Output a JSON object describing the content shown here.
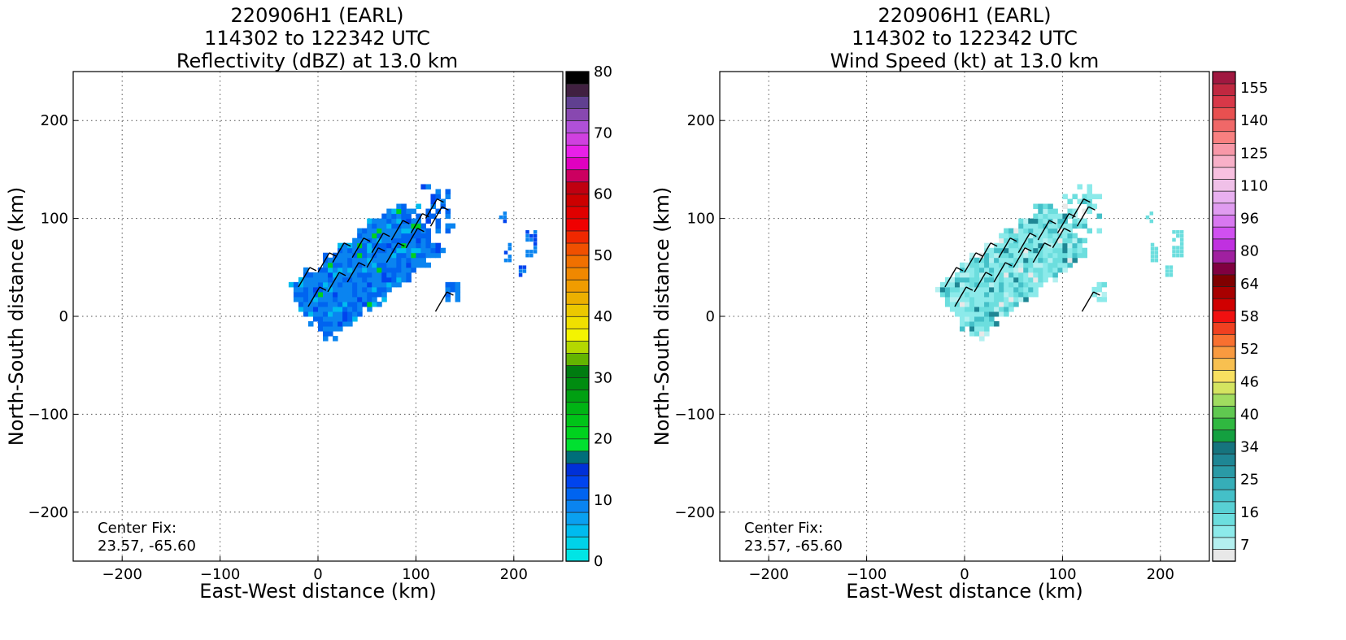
{
  "chart_data": [
    {
      "type": "heatmap",
      "title": [
        "220906H1 (EARL)",
        "114302 to 122342 UTC",
        "Reflectivity (dBZ) at 13.0 km"
      ],
      "xlabel": "East-West distance (km)",
      "ylabel": "North-South distance (km)",
      "xlim": [
        -250,
        250
      ],
      "ylim": [
        -250,
        250
      ],
      "xticks": [
        -200,
        -100,
        0,
        100,
        200
      ],
      "yticks": [
        -200,
        -100,
        0,
        100,
        200
      ],
      "xtick_labels": [
        "−200",
        "−100",
        "0",
        "100",
        "200"
      ],
      "ytick_labels": [
        "−200",
        "−100",
        "0",
        "100",
        "200"
      ],
      "grid": true,
      "annotation": [
        "Center Fix:",
        "23.57, -65.60"
      ],
      "colorbar": {
        "ticks": [
          0,
          10,
          20,
          30,
          40,
          50,
          60,
          70,
          80
        ],
        "range": [
          0,
          80
        ],
        "colors": [
          "#00e5e5",
          "#00d2e8",
          "#00bbef",
          "#0aa0f0",
          "#0a84f0",
          "#0064f0",
          "#0044ee",
          "#0030d8",
          "#006e7a",
          "#00e030",
          "#00d21e",
          "#00c418",
          "#00b414",
          "#00a012",
          "#008c10",
          "#007c10",
          "#64b400",
          "#b4d800",
          "#f4f400",
          "#f0e000",
          "#ecc800",
          "#ecb000",
          "#f09c00",
          "#f08800",
          "#f07000",
          "#f05000",
          "#f02800",
          "#f00000",
          "#e00000",
          "#cc0000",
          "#c00010",
          "#cc0060",
          "#e000c0",
          "#e820e8",
          "#d040e0",
          "#b050d8",
          "#8848b0",
          "#604090",
          "#402040",
          "#000000"
        ]
      },
      "series": [
        {
          "x": [
            -30,
            -10,
            10,
            30,
            50,
            70,
            90,
            110
          ],
          "y": [
            20,
            40,
            60,
            75,
            85,
            95,
            100,
            110
          ]
        }
      ]
    },
    {
      "type": "heatmap",
      "title": [
        "220906H1 (EARL)",
        "114302 to 122342 UTC",
        "Wind Speed (kt) at 13.0 km"
      ],
      "xlabel": "East-West distance (km)",
      "ylabel": "North-South distance (km)",
      "xlim": [
        -250,
        250
      ],
      "ylim": [
        -250,
        250
      ],
      "xticks": [
        -200,
        -100,
        0,
        100,
        200
      ],
      "yticks": [
        -200,
        -100,
        0,
        100,
        200
      ],
      "xtick_labels": [
        "−200",
        "−100",
        "0",
        "100",
        "200"
      ],
      "ytick_labels": [
        "−200",
        "−100",
        "0",
        "100",
        "200"
      ],
      "grid": true,
      "annotation": [
        "Center Fix:",
        "23.57, -65.60"
      ],
      "colorbar": {
        "tick_labels": [
          "7",
          "16",
          "25",
          "34",
          "40",
          "46",
          "52",
          "58",
          "64",
          "80",
          "96",
          "110",
          "125",
          "140",
          "155"
        ],
        "colors": [
          "#e8e8e8",
          "#b4f0f0",
          "#8ceaea",
          "#6cdede",
          "#58d0d4",
          "#44c0c8",
          "#36aeb8",
          "#2a9aa6",
          "#1e8694",
          "#16747e",
          "#14a040",
          "#30b840",
          "#60c850",
          "#a0dc60",
          "#d4e460",
          "#f8e060",
          "#f8c050",
          "#f89a40",
          "#f87030",
          "#f04020",
          "#f01010",
          "#d00000",
          "#a80000",
          "#800000",
          "#800040",
          "#a020a0",
          "#c030e0",
          "#d050f0",
          "#d878f0",
          "#e09cf0",
          "#e8b0f0",
          "#f0c0e8",
          "#f8c0e0",
          "#f8b0c8",
          "#f898a8",
          "#f88080",
          "#f06868",
          "#e85050",
          "#d83848",
          "#c02840",
          "#a01840"
        ]
      }
    }
  ]
}
